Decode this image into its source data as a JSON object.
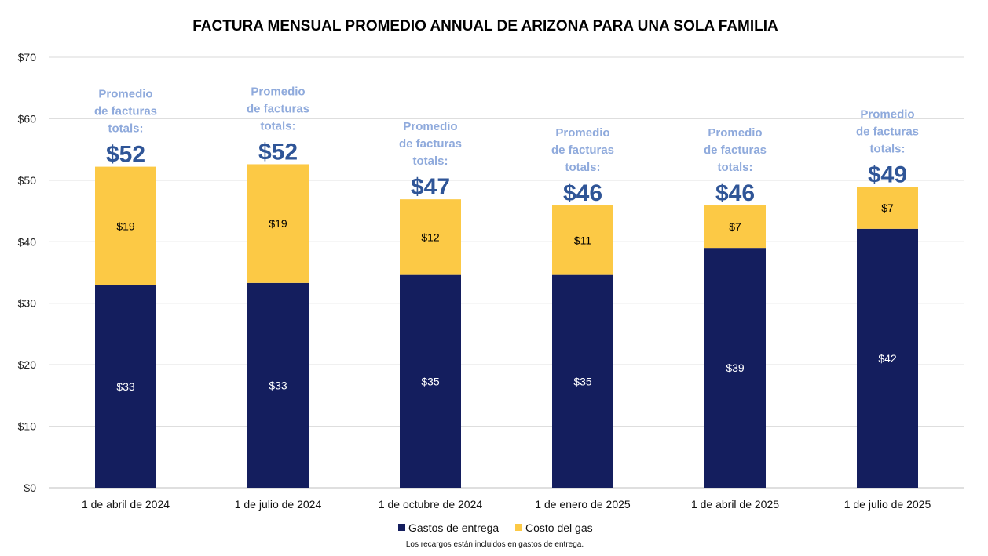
{
  "chart_data": {
    "type": "bar",
    "stacked": true,
    "title": "FACTURA MENSUAL PROMEDIO ANNUAL DE ARIZONA PARA UNA SOLA FAMILIA",
    "xlabel": "",
    "ylabel": "",
    "ylim": [
      0,
      70
    ],
    "ytick_step": 10,
    "ytick_prefix": "$",
    "grid": true,
    "legend_position": "bottom",
    "categories": [
      "1 de abril de 2024",
      "1 de julio de 2024",
      "1 de octubre de 2024",
      "1 de enero de 2025",
      "1 de abril de 2025",
      "1 de julio de 2025"
    ],
    "series": [
      {
        "name": "Gastos de entrega",
        "color": "#141e5e",
        "label_color": "#ffffff",
        "values": [
          32.9,
          33.3,
          34.6,
          34.6,
          39.0,
          42.1
        ],
        "labels": [
          "$33",
          "$33",
          "$35",
          "$35",
          "$39",
          "$42"
        ]
      },
      {
        "name": "Costo del gas",
        "color": "#fcc945",
        "label_color": "#000000",
        "values": [
          19.3,
          19.3,
          12.3,
          11.3,
          6.9,
          6.8
        ],
        "labels": [
          "$19",
          "$19",
          "$12",
          "$11",
          "$7",
          "$7"
        ]
      }
    ],
    "annotations": {
      "lines": [
        "Promedio",
        "de facturas",
        "totals:"
      ],
      "totals": [
        "$52",
        "$52",
        "$47",
        "$46",
        "$46",
        "$49"
      ]
    },
    "footnote": "Los recargos están incluidos en gastos de entrega."
  }
}
